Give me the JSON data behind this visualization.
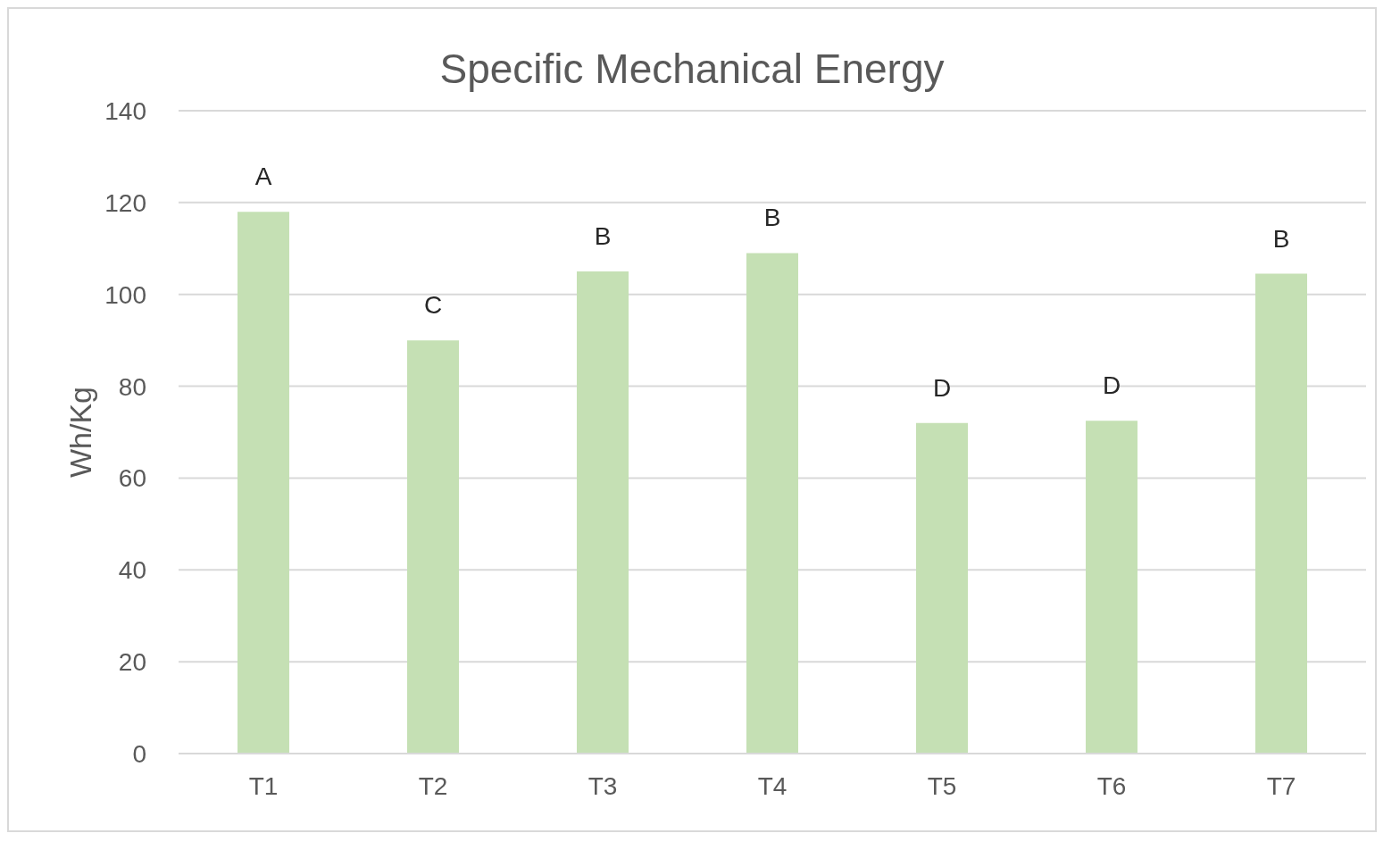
{
  "chart_data": {
    "type": "bar",
    "title": "Specific Mechanical Energy",
    "ylabel": "Wh/Kg",
    "categories": [
      "T1",
      "T2",
      "T3",
      "T4",
      "T5",
      "T6",
      "T7"
    ],
    "values": [
      118,
      90,
      105,
      109,
      72,
      72.5,
      104.5
    ],
    "color": "#c5e0b4",
    "ylim": [
      0,
      140
    ],
    "yticks": [
      0,
      20,
      40,
      60,
      80,
      100,
      120,
      140
    ],
    "grid": "y",
    "legend": false,
    "annotations": [
      {
        "text": "A",
        "x": "T1",
        "y": 118
      },
      {
        "text": "C",
        "x": "T2",
        "y": 90
      },
      {
        "text": "B",
        "x": "T3",
        "y": 105
      },
      {
        "text": "B",
        "x": "T4",
        "y": 109
      },
      {
        "text": "D",
        "x": "T5",
        "y": 72
      },
      {
        "text": "D",
        "x": "T6",
        "y": 72.5
      },
      {
        "text": "B",
        "x": "T7",
        "y": 104.5
      }
    ]
  }
}
